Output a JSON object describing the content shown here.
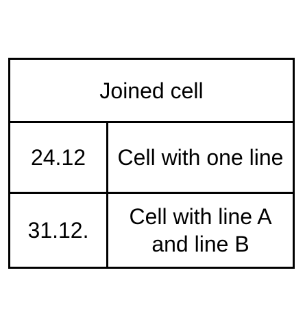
{
  "table": {
    "header": "Joined cell",
    "rows": [
      {
        "date": "24.12",
        "text_lines": [
          "Cell with one line"
        ]
      },
      {
        "date": "31.12.",
        "text_lines": [
          "Cell with line A",
          "and line B"
        ]
      }
    ]
  }
}
